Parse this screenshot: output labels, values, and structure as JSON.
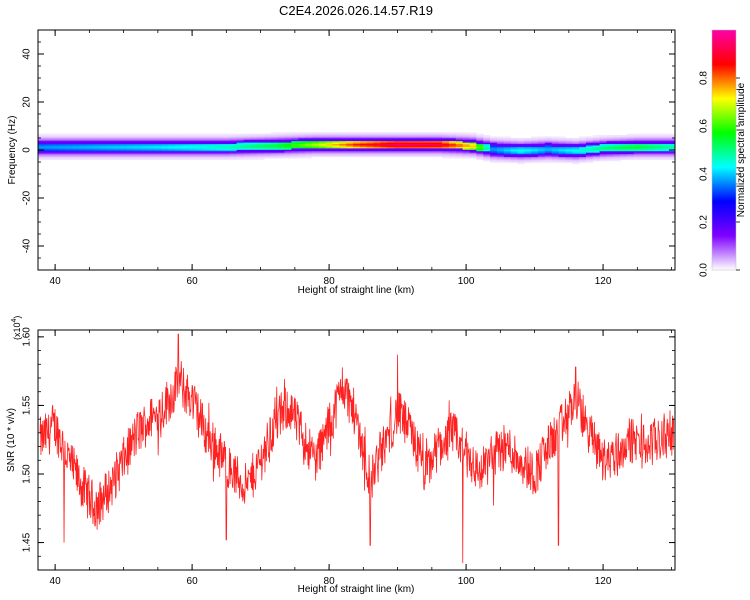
{
  "title": "C2E4.2026.026.14.57.R19",
  "chart_data": [
    {
      "type": "heatmap",
      "xlabel": "Height of straight line (km)",
      "ylabel": "Frequency (Hz)",
      "xlim": [
        37.5,
        130.5
      ],
      "ylim": [
        -50,
        50
      ],
      "x_ticks": [
        40,
        60,
        80,
        100,
        120
      ],
      "y_ticks": [
        -40,
        -20,
        0,
        20,
        40
      ],
      "band": {
        "height_km": [
          38,
          45,
          55,
          65,
          72,
          78,
          84,
          90,
          96,
          101,
          104,
          108,
          112,
          116,
          120,
          125,
          130
        ],
        "center_hz": [
          1,
          1,
          1,
          1,
          1.5,
          2,
          2,
          2,
          2,
          1.5,
          0,
          -0.5,
          0,
          -0.5,
          0.5,
          1,
          1
        ],
        "peak_amplitude": [
          0.38,
          0.4,
          0.43,
          0.48,
          0.55,
          0.68,
          0.85,
          0.95,
          0.93,
          0.75,
          0.38,
          0.45,
          0.4,
          0.45,
          0.52,
          0.56,
          0.5
        ]
      },
      "colorbar": {
        "label": "Normalized spectral amplitude",
        "range": [
          0.0,
          1.0
        ],
        "ticks": [
          "0.0",
          "0.2",
          "0.4",
          "0.6",
          "0.8"
        ],
        "colors": [
          "#ffffff",
          "#7f00ff",
          "#0000ff",
          "#00ffff",
          "#00ff00",
          "#ffff00",
          "#ff0000",
          "#ff00aa"
        ]
      }
    },
    {
      "type": "line",
      "xlabel": "Height of straight line (km)",
      "ylabel": "SNR (10 * v/v)",
      "y_multiplier": "(x10",
      "y_multiplier_exp": "4",
      "y_multiplier_close": ")",
      "xlim": [
        37.5,
        130.5
      ],
      "ylim": [
        1.43,
        1.605
      ],
      "x_ticks": [
        40,
        60,
        80,
        100,
        120
      ],
      "y_ticks": [
        "1.45",
        "1.50",
        "1.55",
        "1.60"
      ],
      "series": [
        {
          "color": "#ff2020",
          "x": [
            38,
            40,
            42,
            44,
            46,
            48,
            50,
            52,
            54,
            56,
            58,
            60,
            62,
            64,
            66,
            68,
            70,
            72,
            74,
            76,
            78,
            80,
            82,
            84,
            86,
            88,
            90,
            92,
            94,
            96,
            98,
            100,
            102,
            104,
            106,
            108,
            110,
            112,
            114,
            116,
            118,
            120,
            122,
            124,
            126,
            128,
            130
          ],
          "y": [
            1.525,
            1.535,
            1.51,
            1.49,
            1.475,
            1.49,
            1.51,
            1.53,
            1.54,
            1.55,
            1.565,
            1.555,
            1.53,
            1.515,
            1.5,
            1.49,
            1.51,
            1.535,
            1.55,
            1.53,
            1.51,
            1.535,
            1.565,
            1.54,
            1.495,
            1.52,
            1.545,
            1.53,
            1.5,
            1.52,
            1.53,
            1.515,
            1.5,
            1.515,
            1.52,
            1.51,
            1.5,
            1.52,
            1.535,
            1.555,
            1.53,
            1.51,
            1.515,
            1.525,
            1.52,
            1.525,
            1.53
          ],
          "dips": [
            [
              41.3,
              1.45
            ],
            [
              65.0,
              1.452
            ],
            [
              86.0,
              1.448
            ],
            [
              99.5,
              1.435
            ],
            [
              113.5,
              1.448
            ],
            [
              104.0,
              1.477
            ]
          ],
          "spikes": [
            [
              58.0,
              1.602
            ],
            [
              90.0,
              1.587
            ],
            [
              116.0,
              1.578
            ]
          ]
        }
      ]
    }
  ]
}
